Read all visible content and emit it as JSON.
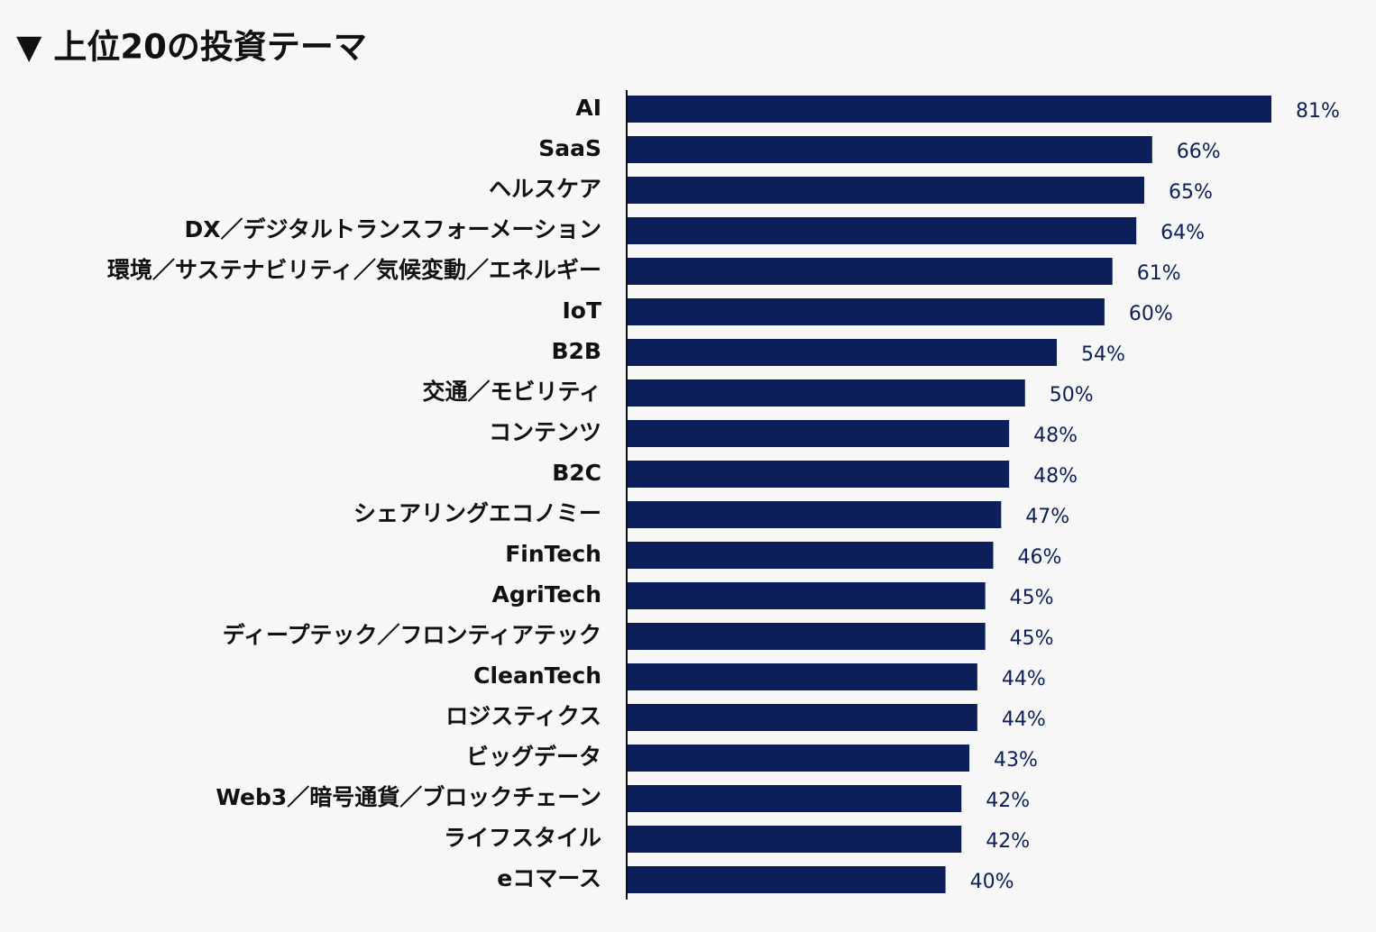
{
  "chart_data": {
    "type": "bar",
    "orientation": "horizontal",
    "title": "▼ 上位20の投資テーマ",
    "categories": [
      "AI",
      "SaaS",
      "ヘルスケア",
      "DX／デジタルトランスフォーメーション",
      "環境／サステナビリティ／気候変動／エネルギー",
      "IoT",
      "B2B",
      "交通／モビリティ",
      "コンテンツ",
      "B2C",
      "シェアリングエコノミー",
      "FinTech",
      "AgriTech",
      "ディープテック／フロンティアテック",
      "CleanTech",
      "ロジスティクス",
      "ビッグデータ",
      "Web3／暗号通貨／ブロックチェーン",
      "ライフスタイル",
      "eコマース"
    ],
    "values": [
      81,
      66,
      65,
      64,
      61,
      60,
      54,
      50,
      48,
      48,
      47,
      46,
      45,
      45,
      44,
      44,
      43,
      42,
      42,
      40
    ],
    "value_labels": [
      "81%",
      "66%",
      "65%",
      "64%",
      "61%",
      "60%",
      "54%",
      "50%",
      "48%",
      "48%",
      "47%",
      "46%",
      "45%",
      "45%",
      "44%",
      "44%",
      "43%",
      "42%",
      "42%",
      "40%"
    ],
    "color": "#0c1f5a"
  }
}
